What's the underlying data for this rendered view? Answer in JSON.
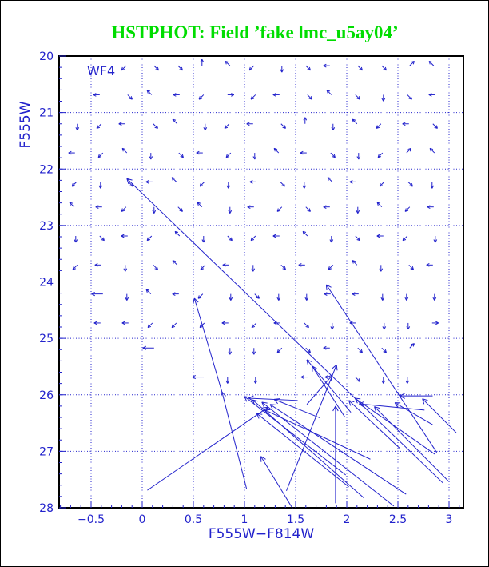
{
  "title": {
    "text": "HSTPHOT: Field ’fake lmc_u5ay04’",
    "color": "#00dd00"
  },
  "field_label": "WF4",
  "colors": {
    "plot_blue": "#2222cc",
    "axis_black": "#000000",
    "background": "#ffffff"
  },
  "chart_data": {
    "type": "quiver",
    "title": "HSTPHOT: Field ’fake lmc_u5ay04’",
    "xlabel": "F555W−F814W",
    "ylabel": "F555W",
    "annotation": "WF4",
    "xlim": [
      -0.8125,
      3.140625
    ],
    "ylim": [
      20,
      28
    ],
    "y_axis_inverted": true,
    "grid": true,
    "x_major_ticks": [
      -0.5,
      0,
      0.5,
      1,
      1.5,
      2,
      2.5,
      3
    ],
    "x_tick_labels": [
      "−0.5",
      "0",
      "0.5",
      "1",
      "1.5",
      "2",
      "2.5",
      "3"
    ],
    "x_minor_step": 0.1,
    "y_major_ticks": [
      20,
      21,
      22,
      23,
      24,
      25,
      26,
      27,
      28
    ],
    "y_tick_labels": [
      "20",
      "21",
      "22",
      "23",
      "24",
      "25",
      "26",
      "27",
      "28"
    ],
    "y_minor_step": 0.2,
    "grid_x_lines": [
      -0.5,
      0,
      0.5,
      1,
      1.5,
      2,
      2.5,
      3
    ],
    "grid_y_lines": [
      20,
      21,
      22,
      23,
      24,
      25,
      26,
      27
    ],
    "small_arrow_grid": {
      "description": "small photometric-offset arrows on a color/magnitude grid; codes: N,S,E,W compass, A=NE, B=SE, C=SW, D=NW, L=long-west, .=none",
      "col_start": -0.65,
      "col_step": 0.25,
      "rows": [
        {
          "mag": 20.2,
          "cells": "..CBBNDCSBWBBAD"
        },
        {
          "mag": 20.7,
          "cells": ".WBDWCECWBDBSBW"
        },
        {
          "mag": 21.2,
          "cells": "SCWBDSCWBNSDCWB"
        },
        {
          "mag": 21.7,
          "cells": "WCDSBWCSDWBSCAD"
        },
        {
          "mag": 22.2,
          "cells": "CSBWDCSWBSDWCBS"
        },
        {
          "mag": 22.7,
          "cells": "DWCSBDSWCBWSDCW"
        },
        {
          "mag": 23.2,
          "cells": "SBWCDSBCWDSBWCS"
        },
        {
          "mag": 23.7,
          "cells": "CWSBDCWSBWCDSBW"
        },
        {
          "mag": 24.2,
          "cells": ".LSDWCSBSSWWSSS"
        },
        {
          "mag": 24.7,
          "cells": ".WWCCCWCWBSWSSE"
        },
        {
          "mag": 25.2,
          "cells": "...L..SSCBWBBA."
        },
        {
          "mag": 25.7,
          "cells": ".....LSS.WWBSS."
        }
      ]
    },
    "long_arrows_tail_to_head": [
      [
        2.94,
        27.56,
        -0.15,
        22.17
      ],
      [
        2.88,
        27.02,
        1.8,
        24.05
      ],
      [
        1.02,
        27.66,
        0.78,
        25.95
      ],
      [
        0.78,
        25.95,
        0.51,
        24.29
      ],
      [
        0.05,
        27.69,
        1.23,
        26.22
      ],
      [
        1.41,
        27.7,
        1.9,
        25.47
      ],
      [
        1.89,
        27.92,
        1.89,
        26.2
      ],
      [
        1.98,
        26.39,
        1.66,
        25.49
      ],
      [
        1.99,
        27.42,
        1.0,
        26.03
      ],
      [
        2.17,
        27.83,
        1.08,
        26.09
      ],
      [
        2.46,
        27.97,
        1.17,
        26.13
      ],
      [
        2.58,
        27.76,
        1.25,
        26.17
      ],
      [
        2.23,
        27.14,
        1.2,
        26.27
      ],
      [
        2.02,
        27.63,
        1.12,
        26.33
      ],
      [
        1.52,
        26.1,
        1.04,
        26.06
      ],
      [
        1.74,
        26.41,
        1.29,
        26.08
      ],
      [
        2.86,
        27.05,
        2.08,
        26.06
      ],
      [
        2.99,
        27.52,
        2.27,
        26.21
      ],
      [
        2.84,
        26.53,
        2.47,
        26.14
      ],
      [
        3.07,
        26.67,
        2.74,
        26.07
      ],
      [
        2.52,
        26.95,
        2.02,
        26.1
      ],
      [
        2.84,
        26.02,
        2.52,
        26.02
      ],
      [
        2.76,
        26.27,
        2.12,
        26.16
      ],
      [
        2.04,
        26.31,
        1.61,
        25.38
      ],
      [
        1.61,
        26.17,
        1.86,
        25.65
      ],
      [
        1.47,
        28.01,
        1.16,
        27.09
      ]
    ]
  }
}
